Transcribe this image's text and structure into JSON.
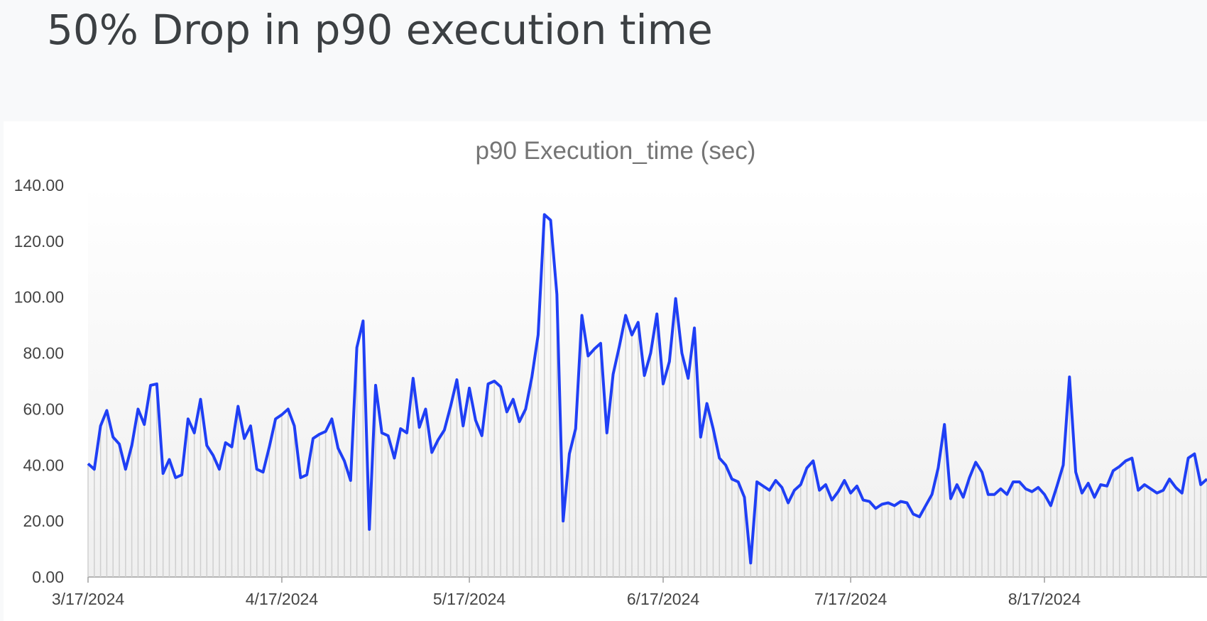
{
  "slide": {
    "title": "50% Drop in p90 execution time"
  },
  "chart_data": {
    "type": "line",
    "title": "p90 Execution_time (sec)",
    "x": [
      "3/17/2024",
      "3/18/2024",
      "3/19/2024",
      "3/20/2024",
      "3/21/2024",
      "3/22/2024",
      "3/23/2024",
      "3/24/2024",
      "3/25/2024",
      "3/26/2024",
      "3/27/2024",
      "3/28/2024",
      "3/29/2024",
      "3/30/2024",
      "3/31/2024",
      "4/1/2024",
      "4/2/2024",
      "4/3/2024",
      "4/4/2024",
      "4/5/2024",
      "4/6/2024",
      "4/7/2024",
      "4/8/2024",
      "4/9/2024",
      "4/10/2024",
      "4/11/2024",
      "4/12/2024",
      "4/13/2024",
      "4/14/2024",
      "4/15/2024",
      "4/16/2024",
      "4/17/2024",
      "4/18/2024",
      "4/19/2024",
      "4/20/2024",
      "4/21/2024",
      "4/22/2024",
      "4/23/2024",
      "4/24/2024",
      "4/25/2024",
      "4/26/2024",
      "4/27/2024",
      "4/28/2024",
      "4/29/2024",
      "4/30/2024",
      "5/1/2024",
      "5/2/2024",
      "5/3/2024",
      "5/4/2024",
      "5/5/2024",
      "5/6/2024",
      "5/7/2024",
      "5/8/2024",
      "5/9/2024",
      "5/10/2024",
      "5/11/2024",
      "5/12/2024",
      "5/13/2024",
      "5/14/2024",
      "5/15/2024",
      "5/16/2024",
      "5/17/2024",
      "5/18/2024",
      "5/19/2024",
      "5/20/2024",
      "5/21/2024",
      "5/22/2024",
      "5/23/2024",
      "5/24/2024",
      "5/25/2024",
      "5/26/2024",
      "5/27/2024",
      "5/28/2024",
      "5/29/2024",
      "5/30/2024",
      "5/31/2024",
      "6/1/2024",
      "6/2/2024",
      "6/3/2024",
      "6/4/2024",
      "6/5/2024",
      "6/6/2024",
      "6/7/2024",
      "6/8/2024",
      "6/9/2024",
      "6/10/2024",
      "6/11/2024",
      "6/12/2024",
      "6/13/2024",
      "6/14/2024",
      "6/15/2024",
      "6/16/2024",
      "6/17/2024",
      "6/18/2024",
      "6/19/2024",
      "6/20/2024",
      "6/21/2024",
      "6/22/2024",
      "6/23/2024",
      "6/24/2024",
      "6/25/2024",
      "6/26/2024",
      "6/27/2024",
      "6/28/2024",
      "6/29/2024",
      "6/30/2024",
      "7/1/2024",
      "7/2/2024",
      "7/3/2024",
      "7/4/2024",
      "7/5/2024",
      "7/6/2024",
      "7/7/2024",
      "7/8/2024",
      "7/9/2024",
      "7/10/2024",
      "7/11/2024",
      "7/12/2024",
      "7/13/2024",
      "7/14/2024",
      "7/15/2024",
      "7/16/2024",
      "7/17/2024",
      "7/18/2024",
      "7/19/2024",
      "7/20/2024",
      "7/21/2024",
      "7/22/2024",
      "7/23/2024",
      "7/24/2024",
      "7/25/2024",
      "7/26/2024",
      "7/27/2024",
      "7/28/2024",
      "7/29/2024",
      "7/30/2024",
      "7/31/2024",
      "8/1/2024",
      "8/2/2024",
      "8/3/2024",
      "8/4/2024",
      "8/5/2024",
      "8/6/2024",
      "8/7/2024",
      "8/8/2024",
      "8/9/2024",
      "8/10/2024",
      "8/11/2024",
      "8/12/2024",
      "8/13/2024",
      "8/14/2024",
      "8/15/2024",
      "8/16/2024",
      "8/17/2024",
      "8/18/2024",
      "8/19/2024",
      "8/20/2024",
      "8/21/2024",
      "8/22/2024",
      "8/23/2024",
      "8/24/2024",
      "8/25/2024",
      "8/26/2024",
      "8/27/2024",
      "8/28/2024",
      "8/29/2024",
      "8/30/2024",
      "8/31/2024",
      "9/1/2024",
      "9/2/2024",
      "9/3/2024",
      "9/4/2024",
      "9/5/2024",
      "9/6/2024",
      "9/7/2024",
      "9/8/2024",
      "9/9/2024",
      "9/10/2024",
      "9/11/2024",
      "9/12/2024"
    ],
    "values": [
      40.5,
      38.5,
      54,
      59.5,
      50,
      47.5,
      38.5,
      47,
      60,
      54.5,
      68.5,
      69,
      37,
      42,
      35.5,
      36.5,
      56.5,
      51.5,
      63.5,
      47,
      43.5,
      38.5,
      48,
      46.5,
      61,
      49.5,
      54,
      38.5,
      37.5,
      46.5,
      56.5,
      58,
      60,
      54,
      35.5,
      36.5,
      49.5,
      51,
      52,
      56.5,
      46,
      41.5,
      34.5,
      82,
      91.5,
      17,
      68.5,
      51.5,
      50.5,
      42.5,
      53,
      51.5,
      71,
      53.5,
      60,
      44.5,
      49,
      52.5,
      61,
      70.5,
      54,
      67.5,
      56,
      50.5,
      69,
      70,
      68,
      59,
      63.5,
      55.5,
      60,
      71.5,
      86.5,
      129.5,
      127.5,
      101,
      20,
      44,
      53,
      93.5,
      79,
      81.5,
      83.5,
      51.5,
      72.5,
      82.5,
      93.5,
      86.5,
      91,
      72,
      80,
      94,
      69,
      77,
      99.5,
      80,
      71,
      89,
      50,
      62,
      53,
      42.5,
      40,
      35,
      34,
      28.5,
      5,
      34,
      32.5,
      31,
      34.5,
      32,
      26.5,
      31,
      33,
      39,
      41.5,
      31,
      33,
      27.5,
      30.5,
      34.5,
      30,
      32.5,
      27.5,
      27,
      24.5,
      26,
      26.5,
      25.5,
      27,
      26.5,
      22.5,
      21.5,
      25.5,
      29.5,
      39,
      54.5,
      28,
      33,
      28.5,
      35.5,
      41,
      37.5,
      29.5,
      29.5,
      31.5,
      29.5,
      34,
      34,
      31.5,
      30.5,
      32,
      29.5,
      25.5,
      32.5,
      40,
      71.5,
      37.5,
      30,
      33.5,
      28.5,
      33,
      32.5,
      38,
      39.5,
      41.5,
      42.5,
      31,
      33,
      31.5,
      30,
      31,
      35,
      32,
      30,
      42.5,
      44,
      33,
      35
    ],
    "color": "#1f3ff5",
    "xlim": [
      "3/17/2024",
      "9/12/2024"
    ],
    "xticks": [
      "3/17/2024",
      "4/17/2024",
      "5/17/2024",
      "6/17/2024",
      "7/17/2024",
      "8/17/2024"
    ],
    "ylim": [
      0,
      140
    ],
    "yticks": [
      {
        "value": 0,
        "label": "0.00"
      },
      {
        "value": 20,
        "label": "20.00"
      },
      {
        "value": 40,
        "label": "40.00"
      },
      {
        "value": 60,
        "label": "60.00"
      },
      {
        "value": 80,
        "label": "80.00"
      },
      {
        "value": 100,
        "label": "100.00"
      },
      {
        "value": 120,
        "label": "120.00"
      },
      {
        "value": 140,
        "label": "140.00"
      }
    ]
  }
}
